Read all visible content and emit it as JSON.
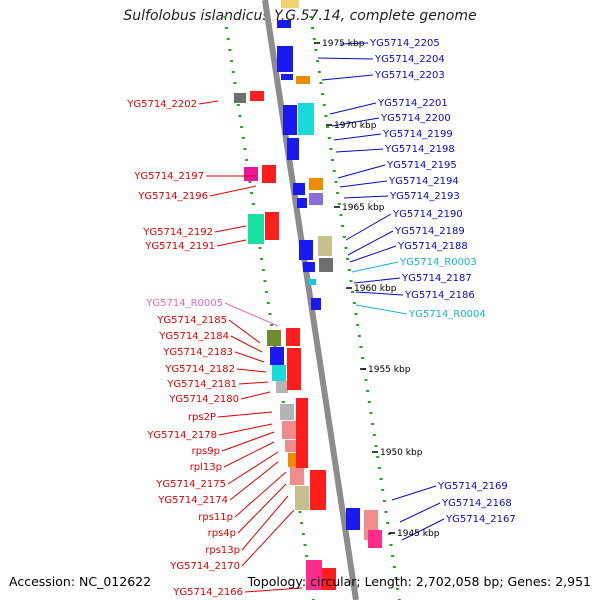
{
  "title": "Sulfolobus islandicus Y.G.57.14, complete genome",
  "footer": {
    "accession": "Accession: NC_012622",
    "topology": "Topology: circular; Length: 2,702,058 bp; Genes: 2,951"
  },
  "colors": {
    "backbone": "#8c8c8c",
    "dots": "#2e9e2e",
    "plus_label": "#0a0ac0",
    "minus_label": "#dd0000",
    "rna_plus_label": "#1ab4cc",
    "rna_minus_label": "#e868b8"
  },
  "kbp_ticks": [
    "1975 kbp",
    "1970 kbp",
    "1965 kbp",
    "1960 kbp",
    "1955 kbp",
    "1950 kbp",
    "1945 kbp"
  ],
  "plus_strand_labels": [
    "YG5714_2205",
    "YG5714_2204",
    "YG5714_2203",
    "YG5714_2201",
    "YG5714_2200",
    "YG5714_2199",
    "YG5714_2198",
    "YG5714_2195",
    "YG5714_2194",
    "YG5714_2193",
    "YG5714_2190",
    "YG5714_2189",
    "YG5714_2188",
    "YG5714_R0003",
    "YG5714_2187",
    "YG5714_2186",
    "YG5714_R0004",
    "YG5714_2169",
    "YG5714_2168",
    "YG5714_2167"
  ],
  "minus_strand_labels": [
    "YG5714_2202",
    "YG5714_2197",
    "YG5714_2196",
    "YG5714_2192",
    "YG5714_2191",
    "YG5714_R0005",
    "YG5714_2185",
    "YG5714_2184",
    "YG5714_2183",
    "YG5714_2182",
    "YG5714_2181",
    "YG5714_2180",
    "rps2P",
    "YG5714_2178",
    "rps9p",
    "rpl13p",
    "YG5714_2175",
    "YG5714_2174",
    "rps11p",
    "rps4p",
    "rps13p",
    "YG5714_2170",
    "YG5714_2166"
  ]
}
